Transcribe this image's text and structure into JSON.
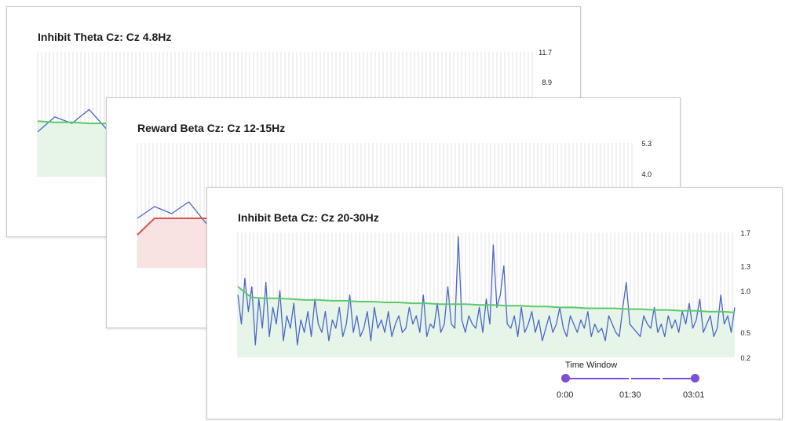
{
  "colors": {
    "grid": "#e3e3e3",
    "signal": "#4a67c6",
    "green_line": "#5cc96c",
    "green_fill": "#e6f5e8",
    "red_line": "#d9534f",
    "red_fill": "#f9e2e2",
    "slider": "#7b4fd8"
  },
  "panels": [
    {
      "title": "Inhibit Theta Cz: Cz 4.8Hz",
      "y_ticks": [
        "11.7",
        "8.9"
      ]
    },
    {
      "title": "Reward Beta Cz: Cz 12-15Hz",
      "y_ticks": [
        "5.3",
        "4.0"
      ]
    },
    {
      "title": "Inhibit Beta Cz: Cz 20-30Hz",
      "y_ticks": [
        "1.7",
        "1.3",
        "1.0",
        "0.5",
        "0.2"
      ]
    }
  ],
  "time_window": {
    "label": "Time Window",
    "ticks": [
      "0:00",
      "01:30",
      "03:01"
    ]
  },
  "chart_data": [
    {
      "type": "line",
      "title": "Inhibit Theta Cz: Cz 4.8Hz",
      "ylim": [
        0,
        11.7
      ],
      "y_tick_values": [
        11.7,
        8.9
      ],
      "threshold_color": "green",
      "series": [
        {
          "values": [
            4.2,
            5.6,
            5.0,
            6.3,
            4.5,
            5.8,
            3.9,
            4.8,
            5.5,
            4.1,
            5.2,
            3.6,
            4.6,
            5.4,
            4.0,
            3.3,
            5.0,
            4.4,
            3.6,
            4.9,
            4.0,
            3.3,
            4.5,
            3.8,
            3.4,
            4.2,
            3.6,
            3.1,
            3.9,
            3.4
          ]
        },
        {
          "values": [
            5.2,
            5.1,
            5.1,
            5.0,
            5.0,
            4.9,
            4.9,
            4.8,
            4.8,
            4.7,
            4.6,
            4.5,
            4.5,
            4.4,
            4.4,
            4.3,
            4.3,
            4.3,
            4.2,
            4.2,
            4.2,
            4.1,
            4.1,
            4.1,
            4.0,
            4.0,
            4.0,
            4.0,
            3.9,
            3.9
          ]
        }
      ]
    },
    {
      "type": "line",
      "title": "Reward Beta Cz: Cz 12-15Hz",
      "ylim": [
        0,
        5.3
      ],
      "y_tick_values": [
        5.3,
        4.0
      ],
      "threshold_color": "red",
      "series": [
        {
          "values": [
            2.1,
            2.6,
            2.3,
            2.8,
            1.9,
            2.5,
            2.2,
            2.9,
            1.8,
            2.4,
            2.0,
            2.7,
            1.7,
            2.3,
            2.1,
            2.9,
            1.9,
            2.2,
            1.6,
            2.5,
            2.0,
            2.3,
            1.8,
            2.1,
            1.5,
            2.4,
            1.9,
            2.2,
            1.7,
            2.0
          ]
        },
        {
          "values": [
            1.4,
            2.1,
            2.1,
            2.1,
            2.1,
            2.1,
            2.0,
            2.0,
            2.0,
            2.0,
            1.9,
            1.9,
            1.9,
            1.8,
            1.8,
            1.8,
            1.8,
            1.7,
            1.7,
            1.7,
            1.7,
            1.7,
            1.7,
            1.6,
            1.6,
            1.6,
            1.6,
            1.6,
            1.6,
            1.6
          ]
        }
      ]
    },
    {
      "type": "line",
      "title": "Inhibit Beta Cz: Cz 20-30Hz",
      "ylim": [
        0.2,
        1.7
      ],
      "y_tick_values": [
        1.7,
        1.3,
        1.0,
        0.5,
        0.2
      ],
      "threshold_color": "green",
      "series": [
        {
          "values": [
            0.95,
            0.6,
            1.15,
            0.75,
            1.05,
            0.35,
            0.9,
            0.55,
            1.1,
            0.45,
            0.8,
            0.6,
            1.0,
            0.4,
            0.7,
            0.55,
            0.85,
            0.35,
            0.65,
            0.5,
            0.75,
            0.45,
            0.9,
            0.6,
            0.5,
            0.75,
            0.4,
            0.65,
            0.55,
            0.8,
            0.45,
            0.6,
            0.95,
            0.5,
            0.7,
            0.45,
            0.55,
            0.75,
            0.4,
            0.8,
            0.55,
            0.65,
            0.5,
            0.75,
            0.45,
            0.6,
            0.7,
            0.5,
            0.55,
            0.8,
            0.6,
            0.7,
            0.5,
            0.95,
            0.45,
            0.6,
            0.55,
            0.85,
            0.5,
            0.6,
            1.05,
            0.6,
            0.55,
            1.65,
            0.65,
            0.5,
            0.7,
            0.6,
            0.55,
            0.8,
            0.5,
            0.9,
            0.6,
            1.55,
            0.8,
            0.95,
            1.3,
            0.6,
            0.55,
            0.7,
            0.45,
            0.8,
            0.5,
            0.6,
            0.75,
            0.5,
            0.65,
            0.4,
            0.55,
            0.7,
            0.5,
            0.6,
            0.8,
            0.55,
            0.45,
            0.7,
            0.6,
            0.5,
            0.65,
            0.55,
            0.75,
            0.45,
            0.6,
            0.5,
            0.55,
            0.4,
            0.7,
            0.6,
            0.5,
            0.45,
            0.8,
            1.1,
            0.6,
            0.55,
            0.5,
            0.45,
            0.7,
            0.6,
            0.55,
            0.8,
            0.5,
            0.6,
            0.45,
            0.7,
            0.55,
            0.65,
            0.5,
            0.75,
            0.6,
            0.85,
            0.55,
            0.65,
            0.9,
            0.5,
            0.6,
            0.7,
            0.45,
            0.55,
            0.95,
            0.6,
            0.7,
            0.5,
            0.8
          ]
        },
        {
          "values": [
            1.05,
            0.92,
            0.91,
            0.91,
            0.9,
            0.89,
            0.89,
            0.88,
            0.88,
            0.87,
            0.87,
            0.86,
            0.86,
            0.85,
            0.85,
            0.84,
            0.84,
            0.84,
            0.83,
            0.83,
            0.82,
            0.82,
            0.81,
            0.81,
            0.8,
            0.8,
            0.79,
            0.79,
            0.79,
            0.78,
            0.78,
            0.77,
            0.77,
            0.76,
            0.76,
            0.75,
            0.75,
            0.74
          ]
        }
      ]
    }
  ]
}
